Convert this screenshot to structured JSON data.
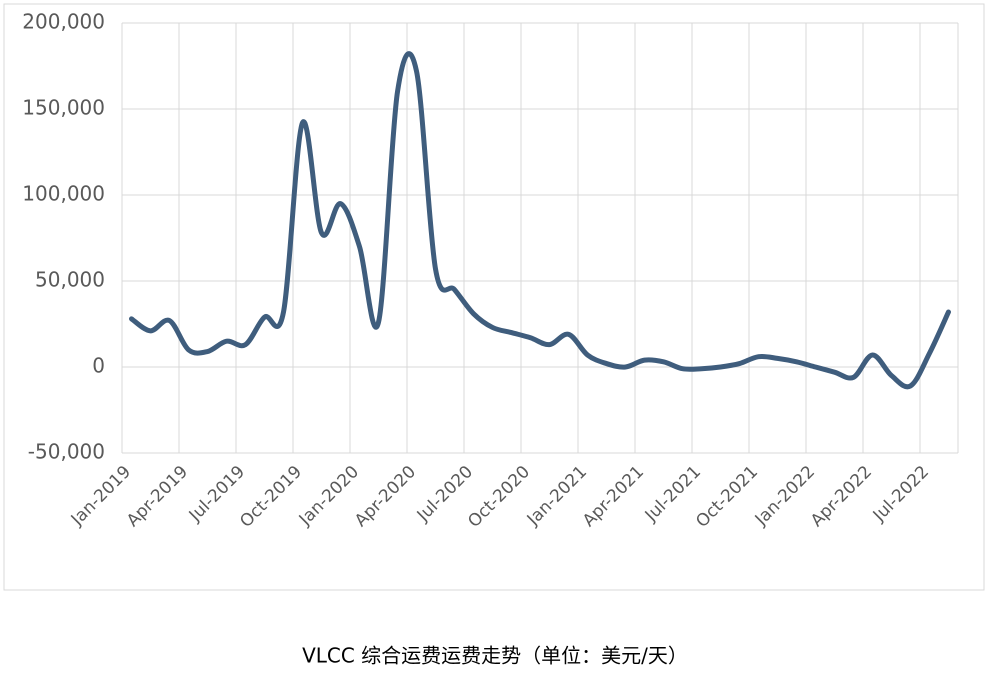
{
  "chart_data": {
    "type": "line",
    "title": "VLCC 综合运费运费走势（单位：美元/天）",
    "categories": [
      "Jan-2019",
      null,
      null,
      "Apr-2019",
      null,
      null,
      "Jul-2019",
      null,
      null,
      "Oct-2019",
      null,
      null,
      "Jan-2020",
      null,
      null,
      "Apr-2020",
      null,
      null,
      "Jul-2020",
      null,
      null,
      "Oct-2020",
      null,
      null,
      "Jan-2021",
      null,
      null,
      "Apr-2021",
      null,
      null,
      "Jul-2021",
      null,
      null,
      "Oct-2021",
      null,
      null,
      "Jan-2022",
      null,
      null,
      "Apr-2022",
      null,
      null,
      "Jul-2022",
      null
    ],
    "values": [
      28000,
      21000,
      27000,
      10000,
      9000,
      15000,
      13000,
      29000,
      32000,
      142000,
      78000,
      95000,
      70000,
      26000,
      160000,
      172000,
      57000,
      45000,
      31000,
      23000,
      20000,
      17000,
      13000,
      19000,
      7000,
      2000,
      0,
      4000,
      3000,
      -1000,
      -1000,
      0,
      2000,
      6000,
      5000,
      3000,
      0,
      -3000,
      -6000,
      7000,
      -5000,
      -11000,
      8000,
      32000
    ],
    "color": "#3f5d7d",
    "ylim": [
      -50000,
      200000
    ],
    "yticks": [
      {
        "value": -50000,
        "label": "-50,000"
      },
      0,
      {
        "value": 50000,
        "label": "50,000"
      },
      {
        "value": 100000,
        "label": "100,000"
      },
      {
        "value": 150000,
        "label": "150,000"
      },
      {
        "value": 200000,
        "label": "200,000"
      }
    ],
    "grid": true
  }
}
